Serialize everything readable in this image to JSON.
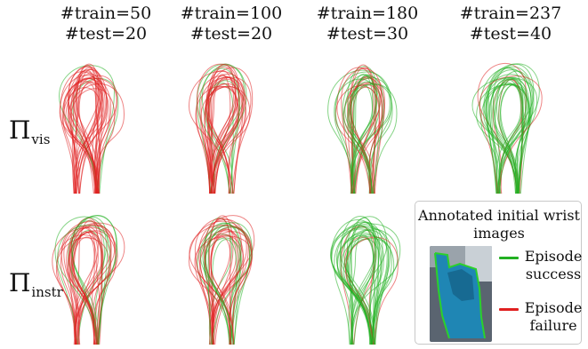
{
  "columns": [
    {
      "train": "#train=50",
      "test": "#test=20"
    },
    {
      "train": "#train=100",
      "test": "#test=20"
    },
    {
      "train": "#train=180",
      "test": "#test=30"
    },
    {
      "train": "#train=237",
      "test": "#test=40"
    }
  ],
  "rows": [
    {
      "symbol": "Π",
      "subscript": "vis"
    },
    {
      "symbol": "Π",
      "subscript": "instr"
    }
  ],
  "legend": {
    "title": "Annotated initial wrist images",
    "success_label": "Episode success",
    "failure_label": "Episode failure",
    "success_color": "#22b022",
    "failure_color": "#e02020"
  },
  "trajectory_plots": [
    {
      "row": "vis",
      "column": 1,
      "success_ratio": 0.05
    },
    {
      "row": "vis",
      "column": 2,
      "success_ratio": 0.15
    },
    {
      "row": "vis",
      "column": 3,
      "success_ratio": 0.7
    },
    {
      "row": "vis",
      "column": 4,
      "success_ratio": 0.85
    },
    {
      "row": "instr",
      "column": 1,
      "success_ratio": 0.25
    },
    {
      "row": "instr",
      "column": 2,
      "success_ratio": 0.2
    },
    {
      "row": "instr",
      "column": 3,
      "success_ratio": 0.9
    }
  ]
}
